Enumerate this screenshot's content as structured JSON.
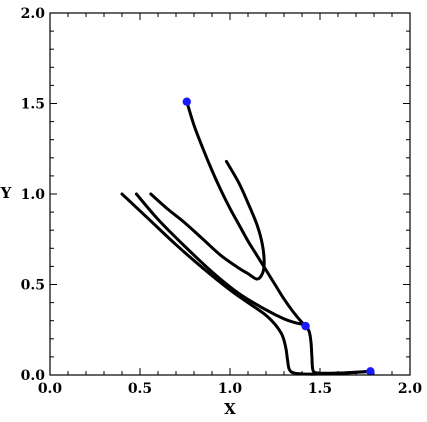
{
  "chart_data": {
    "type": "line",
    "title": "",
    "xlabel": "X",
    "ylabel": "Y",
    "xlim": [
      0.0,
      2.0
    ],
    "ylim": [
      0.0,
      2.0
    ],
    "xticks": [
      "0.0",
      "0.5",
      "1.0",
      "1.5",
      "2.0"
    ],
    "yticks": [
      "0.0",
      "0.5",
      "1.0",
      "1.5",
      "2.0"
    ],
    "xtick_values": [
      0.0,
      0.5,
      1.0,
      1.5,
      2.0
    ],
    "ytick_values": [
      0.0,
      0.5,
      1.0,
      1.5,
      2.0
    ],
    "grid": false,
    "series": [
      {
        "x": [
          0.76,
          0.8,
          0.85,
          0.9,
          0.95,
          1.0,
          1.05,
          1.1,
          1.15,
          1.2,
          1.25,
          1.3,
          1.35,
          1.4,
          1.42
        ],
        "y": [
          1.51,
          1.38,
          1.25,
          1.13,
          1.02,
          0.92,
          0.83,
          0.74,
          0.66,
          0.58,
          0.5,
          0.42,
          0.35,
          0.29,
          0.27
        ]
      },
      {
        "x": [
          0.56,
          0.65,
          0.75,
          0.85,
          0.95,
          1.05,
          1.1,
          1.15,
          1.18,
          1.19,
          1.18,
          1.15,
          1.1,
          1.05,
          0.98
        ],
        "y": [
          1.0,
          0.92,
          0.84,
          0.75,
          0.66,
          0.59,
          0.56,
          0.53,
          0.56,
          0.62,
          0.72,
          0.83,
          0.95,
          1.06,
          1.18
        ]
      },
      {
        "x": [
          0.48,
          0.6,
          0.75,
          0.9,
          1.05,
          1.2,
          1.3,
          1.36,
          1.4,
          1.42
        ],
        "y": [
          1.0,
          0.86,
          0.71,
          0.57,
          0.45,
          0.36,
          0.31,
          0.29,
          0.28,
          0.27
        ]
      },
      {
        "x": [
          0.4,
          0.55,
          0.7,
          0.85,
          1.0,
          1.1,
          1.2,
          1.25,
          1.29,
          1.31,
          1.32,
          1.33,
          1.36,
          1.45,
          1.6,
          1.78
        ],
        "y": [
          1.0,
          0.86,
          0.72,
          0.59,
          0.47,
          0.4,
          0.33,
          0.28,
          0.22,
          0.15,
          0.08,
          0.03,
          0.01,
          0.005,
          0.01,
          0.02
        ]
      },
      {
        "x": [
          1.42,
          1.44,
          1.45,
          1.455,
          1.46,
          1.48,
          1.55,
          1.65,
          1.78
        ],
        "y": [
          0.27,
          0.24,
          0.18,
          0.1,
          0.03,
          0.012,
          0.01,
          0.012,
          0.02
        ]
      }
    ],
    "points": [
      {
        "x": 0.76,
        "y": 1.51
      },
      {
        "x": 1.42,
        "y": 0.27
      },
      {
        "x": 1.78,
        "y": 0.02
      }
    ],
    "colors": {
      "line": "#000000",
      "point": "#1a1aff",
      "frame": "#000000"
    }
  }
}
